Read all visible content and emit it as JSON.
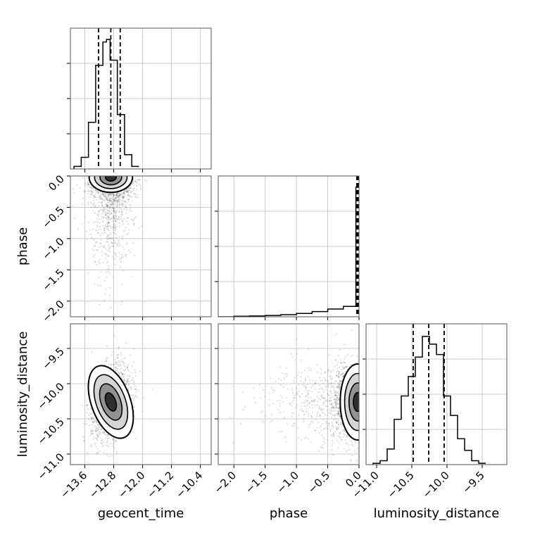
{
  "chart_data": {
    "type": "scatter",
    "subtype": "corner",
    "parameters": [
      "geocent_time",
      "phase",
      "luminosity_distance"
    ],
    "quantiles": {
      "geocent_time": [
        -13.22,
        -12.88,
        -12.62
      ],
      "phase": [
        -0.035,
        -0.018,
        -0.006
      ],
      "luminosity_distance": [
        -10.48,
        -10.26,
        -10.04
      ]
    },
    "ranges": {
      "geocent_time": [
        -14.0,
        -10.1
      ],
      "phase": [
        -2.25,
        0.0
      ],
      "luminosity_distance": [
        -11.15,
        -9.15
      ]
    },
    "axes": {
      "geocent_time": {
        "label": "geocent_time",
        "ticks": [
          -13.6,
          -12.8,
          -12.0,
          -11.2,
          -10.4
        ],
        "tick_labels": [
          "−13.6",
          "−12.8",
          "−12.0",
          "−11.2",
          "−10.4"
        ]
      },
      "phase": {
        "label": "phase",
        "ticks": [
          -2.0,
          -1.5,
          -1.0,
          -0.5,
          0.0
        ],
        "tick_labels": [
          "−2.0",
          "−1.5",
          "−1.0",
          "−0.5",
          "0.0"
        ]
      },
      "luminosity_distance": {
        "label": "luminosity_distance",
        "ticks": [
          -11.0,
          -10.5,
          -10.0,
          -9.5
        ],
        "tick_labels": [
          "−11.0",
          "−10.5",
          "−10.0",
          "−9.5"
        ]
      }
    },
    "histograms": {
      "geocent_time": {
        "edges": [
          -13.9,
          -13.8,
          -13.7,
          -13.6,
          -13.5,
          -13.4,
          -13.3,
          -13.2,
          -13.1,
          -13.0,
          -12.9,
          -12.8,
          -12.7,
          -12.6,
          -12.5,
          -12.4,
          -12.3,
          -12.2,
          -12.1
        ],
        "counts": [
          0.02,
          0.02,
          0.09,
          0.09,
          0.36,
          0.36,
          0.8,
          0.8,
          0.98,
          1.0,
          0.84,
          0.84,
          0.42,
          0.42,
          0.11,
          0.11,
          0.02,
          0.02
        ]
      },
      "phase": {
        "edges": [
          -2.25,
          -2.0,
          -1.75,
          -1.5,
          -1.25,
          -1.0,
          -0.75,
          -0.5,
          -0.25,
          -0.05,
          0.0
        ],
        "counts": [
          0.0,
          0.004,
          0.006,
          0.01,
          0.016,
          0.026,
          0.04,
          0.06,
          0.08,
          1.0
        ]
      },
      "luminosity_distance": {
        "edges": [
          -11.05,
          -10.95,
          -10.85,
          -10.75,
          -10.65,
          -10.55,
          -10.45,
          -10.35,
          -10.25,
          -10.15,
          -10.05,
          -9.95,
          -9.85,
          -9.75,
          -9.65,
          -9.55,
          -9.45
        ],
        "counts": [
          0.01,
          0.03,
          0.12,
          0.35,
          0.53,
          0.68,
          0.83,
          0.99,
          0.93,
          0.85,
          0.53,
          0.38,
          0.2,
          0.11,
          0.03,
          0.01
        ]
      }
    },
    "contour_panels": [
      {
        "x": "geocent_time",
        "y": "phase",
        "center": [
          -12.88,
          -0.02
        ],
        "scatter_spread": [
          0.3,
          0.55
        ]
      },
      {
        "x": "geocent_time",
        "y": "luminosity_distance",
        "center": [
          -12.88,
          -10.26
        ],
        "scatter_spread": [
          0.27,
          0.27
        ],
        "tilt": 0.35
      },
      {
        "x": "phase",
        "y": "luminosity_distance",
        "center": [
          -0.02,
          -10.26
        ],
        "scatter_spread": [
          0.5,
          0.27
        ]
      }
    ],
    "grid": true,
    "color": "#000000",
    "grid_color": "#cccccc"
  }
}
